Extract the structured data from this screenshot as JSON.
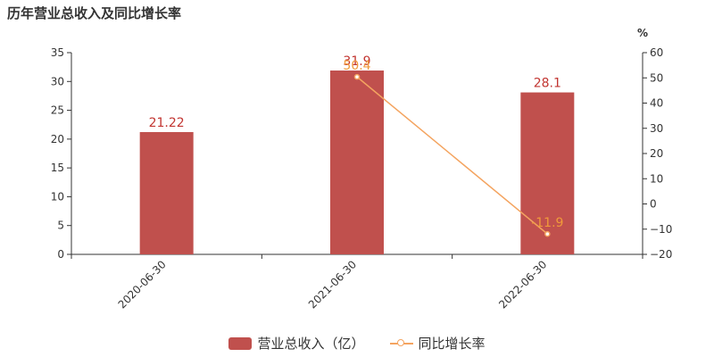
{
  "title": "历年营业总收入及同比增长率",
  "colors": {
    "bar": "#c0504d",
    "bar_label": "#c23531",
    "line": "#f4a460",
    "line_label": "#f09a3a",
    "axis": "#333333"
  },
  "chart_data": {
    "type": "bar",
    "categories": [
      "2020-06-30",
      "2021-06-30",
      "2022-06-30"
    ],
    "series": [
      {
        "name": "营业总收入（亿）",
        "type": "bar",
        "axis": "left",
        "values": [
          21.22,
          31.9,
          28.1
        ],
        "labels": [
          "21.22",
          "31.9",
          "28.1"
        ]
      },
      {
        "name": "同比增长率",
        "type": "line",
        "axis": "right",
        "values": [
          null,
          50.4,
          -11.9
        ],
        "labels": [
          "",
          "50.4",
          "-11.9"
        ]
      }
    ],
    "y_left": {
      "min": 0,
      "max": 35,
      "step": 5,
      "ticks": [
        "0",
        "5",
        "10",
        "15",
        "20",
        "25",
        "30",
        "35"
      ]
    },
    "y_right": {
      "min": -20,
      "max": 60,
      "step": 10,
      "unit": "%",
      "ticks": [
        "−20",
        "−10",
        "0",
        "10",
        "20",
        "30",
        "40",
        "50",
        "60"
      ]
    },
    "grid": false,
    "legend_position": "bottom"
  }
}
